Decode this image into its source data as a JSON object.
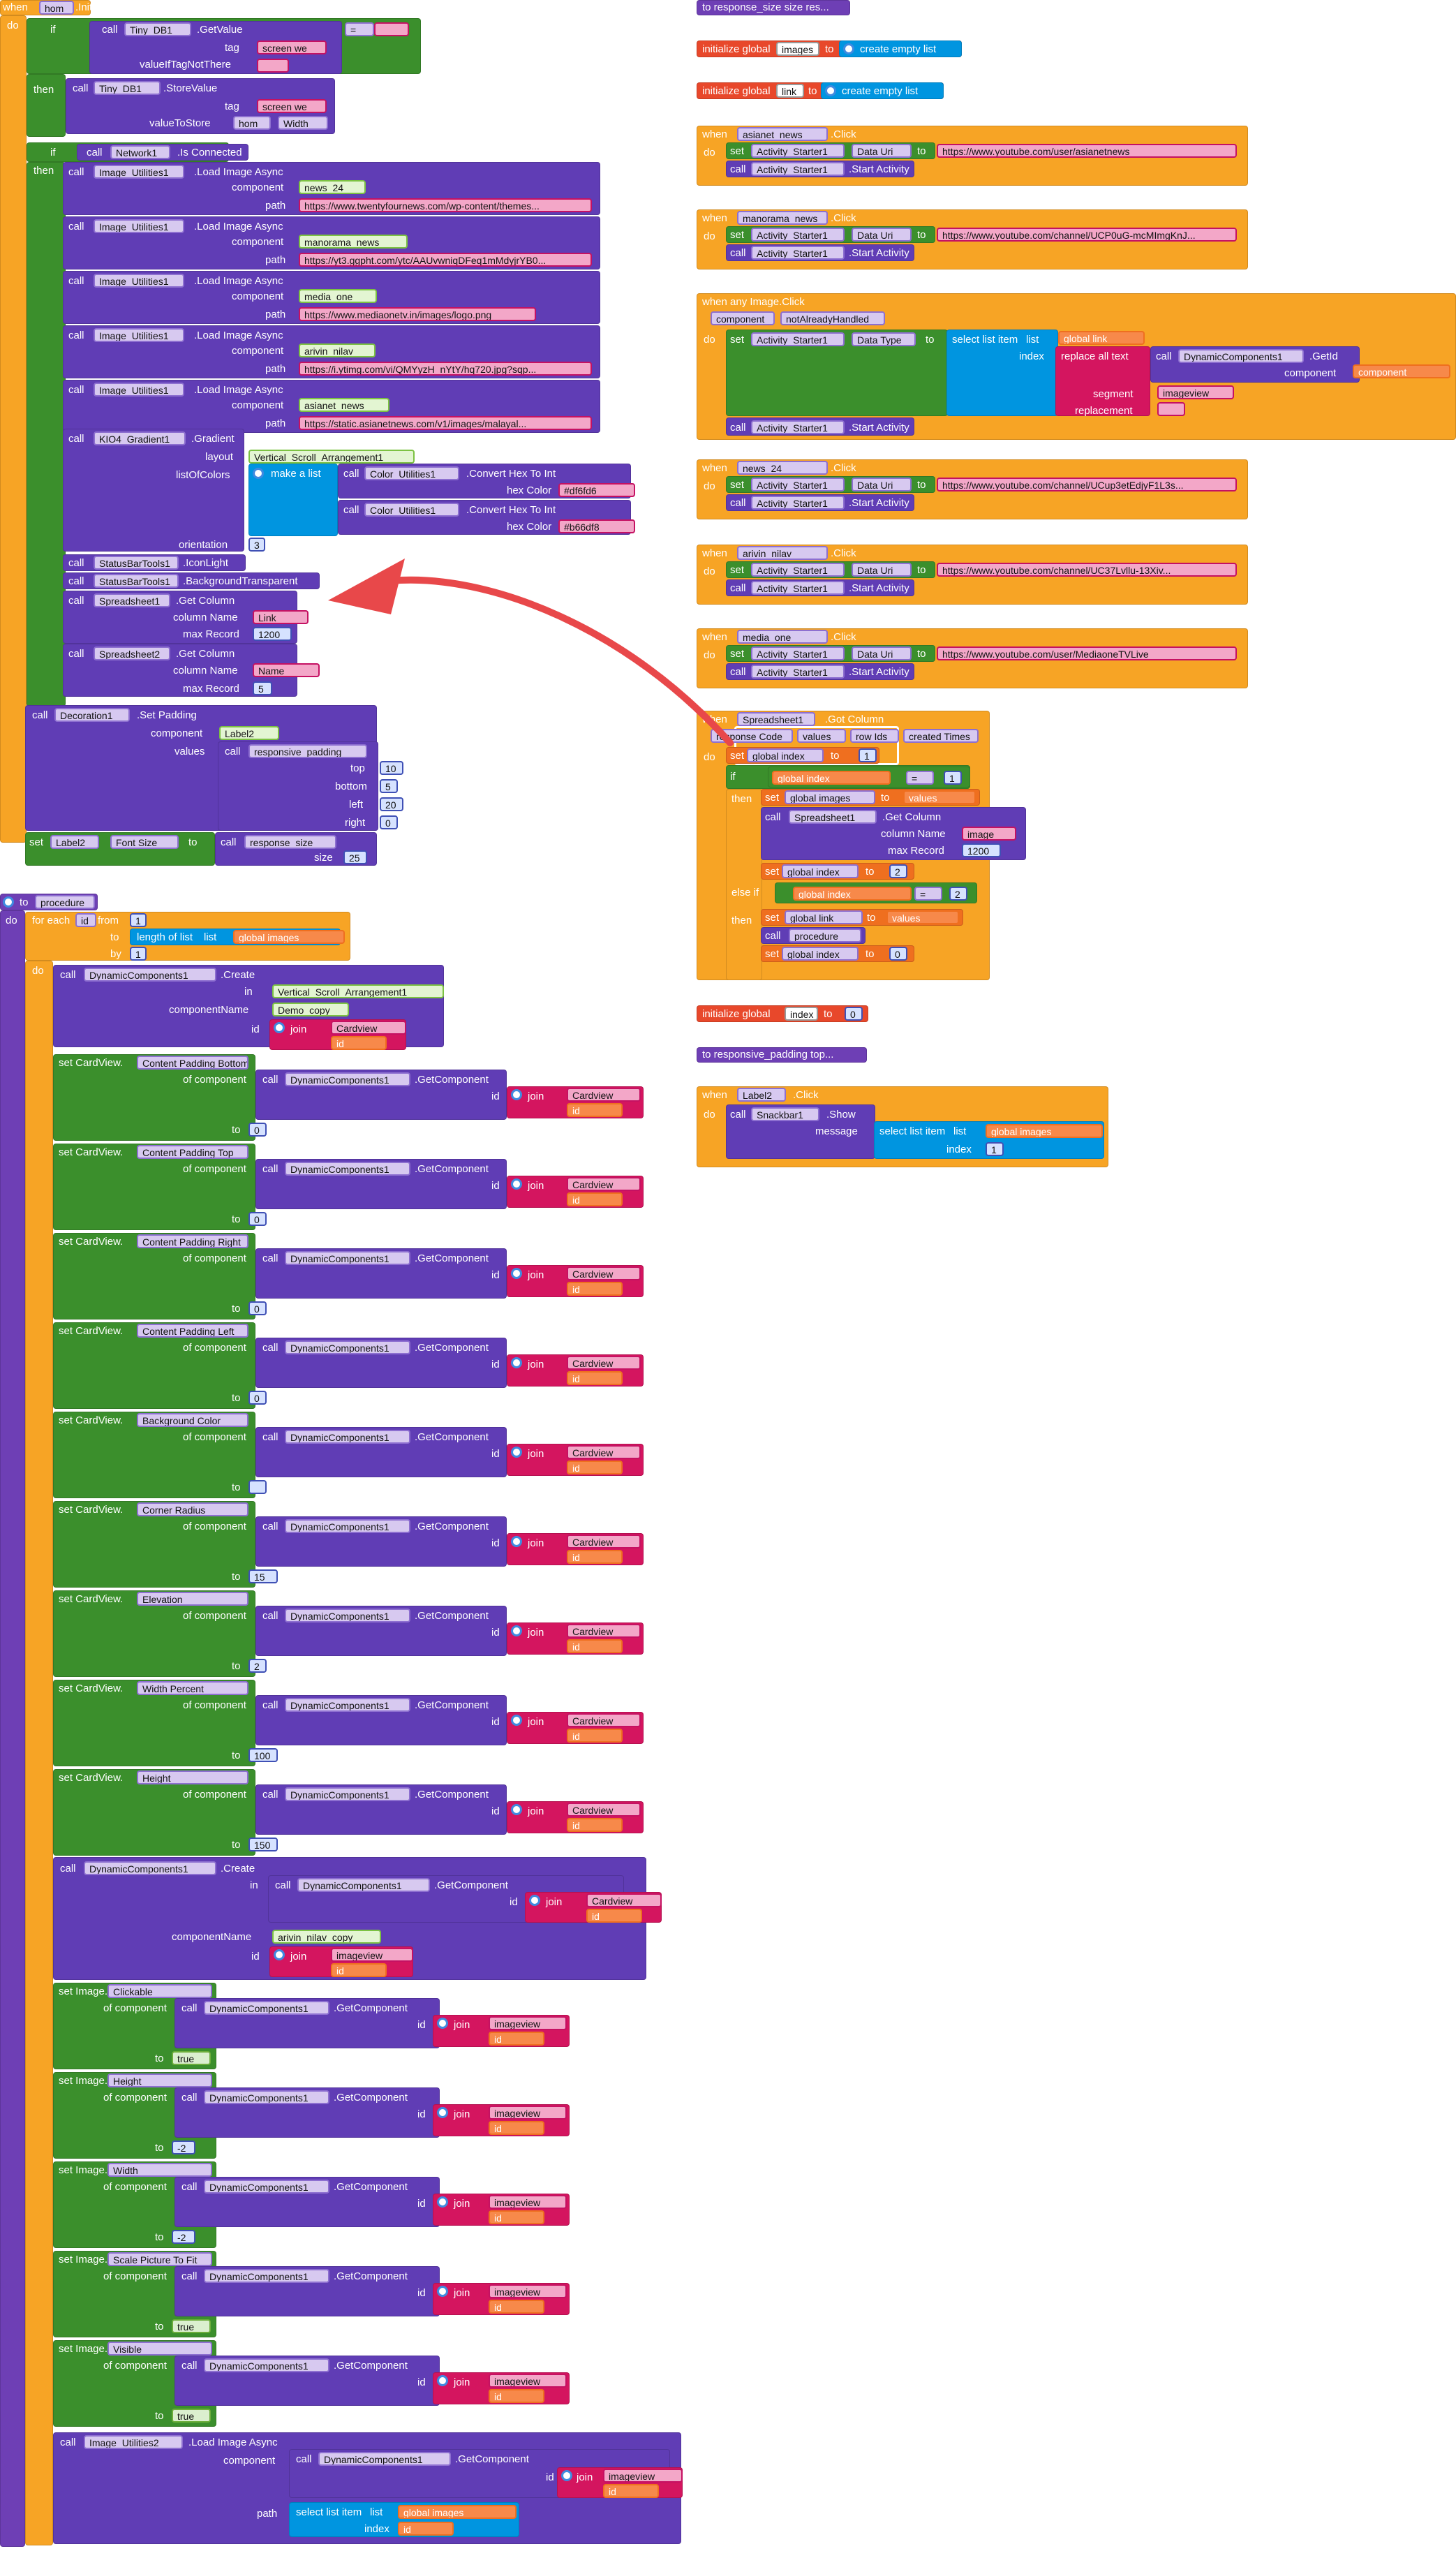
{
  "left": {
    "init_when": "when",
    "init_comp": "hom",
    "init_event": ".Initialize",
    "do": "do",
    "if": "if",
    "then": "then",
    "else_if": "else if",
    "call": "call",
    "set": "set",
    "to": "to",
    "tinydb_get": {
      "comp": "Tiny_DB1",
      "method": ".GetValue",
      "tag_label": "tag",
      "tag": "screen we",
      "vifn_label": "valueIfTagNotThere",
      "vifn": " ",
      "op": "="
    },
    "tinydb_store": {
      "comp": "Tiny_DB1",
      "method": ".StoreValue",
      "tag_label": "tag",
      "tag": "screen we",
      "vts_label": "valueToStore",
      "vts_comp": "hom",
      "vts_prop": "Width"
    },
    "network": {
      "comp": "Network1",
      "method": ".Is Connected"
    },
    "img_loads": [
      {
        "comp": "Image_Utilities1",
        "method": ".Load Image Async",
        "component_label": "component",
        "component": "news_24",
        "path_label": "path",
        "path": "https://www.twentyfournews.com/wp-content/themes..."
      },
      {
        "comp": "Image_Utilities1",
        "method": ".Load Image Async",
        "component_label": "component",
        "component": "manorama_news",
        "path_label": "path",
        "path": "https://yt3.ggpht.com/ytc/AAUvwniqDFeq1mMdyjrYB0..."
      },
      {
        "comp": "Image_Utilities1",
        "method": ".Load Image Async",
        "component_label": "component",
        "component": "media_one",
        "path_label": "path",
        "path": "https://www.mediaonetv.in/images/logo.png"
      },
      {
        "comp": "Image_Utilities1",
        "method": ".Load Image Async",
        "component_label": "component",
        "component": "arivin_nilav",
        "path_label": "path",
        "path": "https://i.ytimg.com/vi/QMYyzH_nYtY/hq720.jpg?sqp..."
      },
      {
        "comp": "Image_Utilities1",
        "method": ".Load Image Async",
        "component_label": "component",
        "component": "asianet_news",
        "path_label": "path",
        "path": "https://static.asianetnews.com/v1/images/malayal..."
      }
    ],
    "gradient": {
      "comp": "KIO4_Gradient1",
      "method": ".Gradient",
      "layout_label": "layout",
      "layout": "Vertical_Scroll_Arrangement1",
      "loc_label": "listOfColors",
      "make_list": "make a list",
      "color_comp": "Color_Utilities1",
      "color_method": ".Convert Hex To Int",
      "hex_label": "hex Color",
      "hex1": "#df6fd6",
      "hex2": "#b66df8",
      "orient_label": "orientation",
      "orient": "3"
    },
    "statusbar1": {
      "comp": "StatusBarTools1",
      "method": ".IconLight"
    },
    "statusbar2": {
      "comp": "StatusBarTools1",
      "method": ".BackgroundTransparent"
    },
    "ss1": {
      "comp": "Spreadsheet1",
      "method": ".Get Column",
      "cn_label": "column Name",
      "cn": "Link",
      "mr_label": "max Record",
      "mr": "1200"
    },
    "ss2": {
      "comp": "Spreadsheet2",
      "method": ".Get Column",
      "cn_label": "column Name",
      "cn": "Name",
      "mr_label": "max Record",
      "mr": "5"
    },
    "deco": {
      "comp": "Decoration1",
      "method": ".Set Padding",
      "component_label": "component",
      "component": "Label2",
      "values_label": "values",
      "proc": "responsive_padding",
      "top_label": "top",
      "top": "10",
      "bottom_label": "bottom",
      "bottom": "5",
      "left_label": "left",
      "left": "20",
      "right_label": "right",
      "right": "0"
    },
    "fontsize": {
      "comp": "Label2",
      "prop": "Font Size",
      "proc": "response_size",
      "size_label": "size",
      "size": "25"
    }
  },
  "procedure": {
    "header": "to",
    "name": "procedure",
    "do": "do",
    "foreach": "for each",
    "var": "id",
    "from_label": "from",
    "from": "1",
    "to_label": "to",
    "length": "length of list",
    "list_label": "list",
    "get_images": "global images",
    "by_label": "by",
    "by": "1",
    "get": "get",
    "join": "join",
    "create": {
      "comp": "DynamicComponents1",
      "method": ".Create",
      "in_label": "in",
      "in": "Vertical_Scroll_Arrangement1",
      "cn_label": "componentName",
      "cn": "Demo_copy",
      "id_label": "id",
      "id_str": "Cardview"
    },
    "dc_comp": "DynamicComponents1",
    "dc_method": ".GetComponent",
    "of_comp": "of component",
    "card_sets": [
      {
        "prop": "Content Padding Bottom",
        "val": "0"
      },
      {
        "prop": "Content Padding Top",
        "val": "0"
      },
      {
        "prop": "Content Padding Right",
        "val": "0"
      },
      {
        "prop": "Content Padding Left",
        "val": "0"
      },
      {
        "prop": "Background Color",
        "val": ""
      },
      {
        "prop": "Corner Radius",
        "val": "15"
      },
      {
        "prop": "Elevation",
        "val": "2"
      },
      {
        "prop": "Width Percent",
        "val": "100"
      },
      {
        "prop": "Height",
        "val": "150"
      }
    ],
    "card_prefix": "set CardView.",
    "cardview": "Cardview",
    "create2": {
      "comp": "DynamicComponents1",
      "method": ".Create",
      "in_label": "in",
      "cn_label": "componentName",
      "cn": "arivin_nilav_copy",
      "id_label": "id",
      "id_str": "imageview"
    },
    "img_prefix": "set Image.",
    "imageview": "imageview",
    "img_sets": [
      {
        "prop": "Clickable",
        "val": "true"
      },
      {
        "prop": "Height",
        "val": "-2"
      },
      {
        "prop": "Width",
        "val": "-2"
      },
      {
        "prop": "Scale Picture To Fit",
        "val": "true"
      },
      {
        "prop": "Visible",
        "val": "true"
      }
    ],
    "final": {
      "comp": "Image_Utilities2",
      "method": ".Load Image Async",
      "component_label": "component",
      "path_label": "path",
      "sli": "select list item",
      "list_label": "list",
      "index_label": "index"
    }
  },
  "right": {
    "to_resp_size": "to response_size  size res...",
    "init_global": "initialize global",
    "g_images": "images",
    "g_link": "link",
    "to": "to",
    "create_empty": "create empty list",
    "when": "when",
    "do": "do",
    "set": "set",
    "call": "call",
    "click": ".Click",
    "act_comp": "Activity_Starter1",
    "data_uri": "Data Uri",
    "data_type": "Data Type",
    "start": ".Start Activity",
    "clicks": [
      {
        "comp": "asianet_news",
        "url": "https://www.youtube.com/user/asianetnews"
      },
      {
        "comp": "manorama_news",
        "url": "https://www.youtube.com/channel/UCP0uG-mcMImgKnJ..."
      },
      {
        "comp": "news_24",
        "url": "https://www.youtube.com/channel/UCup3etEdjyF1L3s..."
      },
      {
        "comp": "arivin_nilav",
        "url": "https://www.youtube.com/channel/UC37Lvllu-13Xiv..."
      },
      {
        "comp": "media_one",
        "url": "https://www.youtube.com/user/MediaoneTVLive"
      }
    ],
    "any_image": {
      "header": "when any Image.Click",
      "p1": "component",
      "p2": "notAlreadyHandled",
      "sli": "select list item",
      "list_label": "list",
      "index_label": "index",
      "replace_all": "replace all text",
      "segment_label": "segment",
      "replacement_label": "replacement",
      "get_link": "global link",
      "get_comp": "component",
      "seg": "imageview",
      "rep": " ",
      "dc": "DynamicComponents1",
      "getid": ".GetId",
      "comp_label": "component"
    },
    "gotcol": {
      "comp": "Spreadsheet1",
      "event": ".Got Column",
      "params": [
        "response Code",
        "values",
        "row Ids",
        "created Times"
      ],
      "set_index": "global index",
      "one": "1",
      "if": "if",
      "then": "then",
      "else_if": "else if",
      "get_index": "global index",
      "eq": "=",
      "get": "get",
      "g_images": "global images",
      "values": "values",
      "ss": "Spreadsheet1",
      "gc": ".Get Column",
      "cn_label": "column Name",
      "cn": "image",
      "mr_label": "max Record",
      "mr": "1200",
      "two": "2",
      "g_link": "global link",
      "proc": "procedure",
      "zero": "0"
    },
    "init_index": {
      "label": "initialize global",
      "name": "index",
      "to": "to",
      "val": "0"
    },
    "to_resp_pad": "to responsive_padding  top...",
    "label2": {
      "comp": "Label2",
      "event": ".Click",
      "snack": "Snackbar1",
      "show": ".Show",
      "msg_label": "message",
      "sli": "select list item",
      "list_label": "list",
      "get": "get",
      "g_images": "global images",
      "index_label": "index",
      "idx": "1"
    }
  }
}
